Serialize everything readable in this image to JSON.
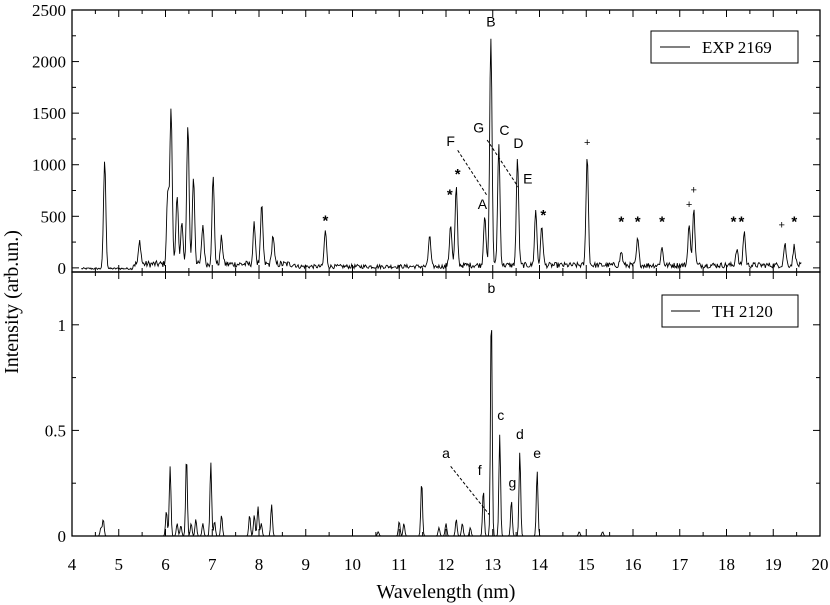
{
  "chart_data": {
    "type": "line",
    "xlabel": "Wavelength (nm)",
    "ylabel": "Intensity (arb.un.)",
    "xlim": [
      4,
      20
    ],
    "x_ticks": [
      4,
      5,
      6,
      7,
      8,
      9,
      10,
      11,
      12,
      13,
      14,
      15,
      16,
      17,
      18,
      19,
      20
    ],
    "panels": [
      {
        "id": "top",
        "ylim": [
          -40,
          2500
        ],
        "y_ticks": [
          0,
          500,
          1000,
          1500,
          2000,
          2500
        ],
        "series": [
          {
            "name": "EXP 2169",
            "baseline": 60,
            "peaks": [
              {
                "x": 4.7,
                "y": 1050
              },
              {
                "x": 5.45,
                "y": 220
              },
              {
                "x": 6.05,
                "y": 700
              },
              {
                "x": 6.12,
                "y": 1510
              },
              {
                "x": 6.25,
                "y": 650
              },
              {
                "x": 6.35,
                "y": 400
              },
              {
                "x": 6.48,
                "y": 1370
              },
              {
                "x": 6.6,
                "y": 850
              },
              {
                "x": 6.8,
                "y": 380
              },
              {
                "x": 7.02,
                "y": 840
              },
              {
                "x": 7.2,
                "y": 260
              },
              {
                "x": 7.9,
                "y": 390
              },
              {
                "x": 8.06,
                "y": 560
              },
              {
                "x": 8.3,
                "y": 280
              },
              {
                "x": 9.42,
                "y": 350
              },
              {
                "x": 11.65,
                "y": 300
              },
              {
                "x": 12.1,
                "y": 400
              },
              {
                "x": 12.22,
                "y": 750
              },
              {
                "x": 12.83,
                "y": 500
              },
              {
                "x": 12.96,
                "y": 2220
              },
              {
                "x": 13.13,
                "y": 1170
              },
              {
                "x": 13.53,
                "y": 1040
              },
              {
                "x": 13.92,
                "y": 530
              },
              {
                "x": 14.05,
                "y": 380
              },
              {
                "x": 15.02,
                "y": 1070
              },
              {
                "x": 15.75,
                "y": 130
              },
              {
                "x": 16.1,
                "y": 250
              },
              {
                "x": 16.62,
                "y": 170
              },
              {
                "x": 17.2,
                "y": 390
              },
              {
                "x": 17.3,
                "y": 540
              },
              {
                "x": 18.22,
                "y": 160
              },
              {
                "x": 18.38,
                "y": 330
              },
              {
                "x": 19.25,
                "y": 210
              },
              {
                "x": 19.45,
                "y": 190
              }
            ]
          }
        ],
        "peak_labels": [
          {
            "text": "B",
            "x": 12.96,
            "y": 2340
          },
          {
            "text": "C",
            "x": 13.25,
            "y": 1290
          },
          {
            "text": "D",
            "x": 13.55,
            "y": 1160
          },
          {
            "text": "E",
            "x": 13.75,
            "y": 820
          },
          {
            "text": "A",
            "x": 12.78,
            "y": 570
          },
          {
            "text": "F",
            "x": 12.1,
            "y": 1180
          },
          {
            "text": "G",
            "x": 12.7,
            "y": 1310
          }
        ],
        "star_marks": [
          {
            "x": 9.42,
            "y": 490
          },
          {
            "x": 12.08,
            "y": 740
          },
          {
            "x": 12.25,
            "y": 940
          },
          {
            "x": 14.08,
            "y": 540
          },
          {
            "x": 15.75,
            "y": 480
          },
          {
            "x": 16.1,
            "y": 480
          },
          {
            "x": 16.62,
            "y": 480
          },
          {
            "x": 18.15,
            "y": 480
          },
          {
            "x": 18.32,
            "y": 480
          },
          {
            "x": 19.45,
            "y": 480
          }
        ],
        "plus_marks": [
          {
            "x": 15.02,
            "y": 1220
          },
          {
            "x": 17.2,
            "y": 620
          },
          {
            "x": 17.3,
            "y": 760
          },
          {
            "x": 19.18,
            "y": 420
          }
        ],
        "leaders": [
          {
            "from": [
              12.25,
              1140
            ],
            "to": [
              12.88,
              700
            ]
          },
          {
            "from": [
              12.88,
              1240
            ],
            "to": [
              13.55,
              780
            ]
          }
        ]
      },
      {
        "id": "bottom",
        "ylim": [
          0,
          1.25
        ],
        "y_ticks": [
          0,
          0.5,
          1
        ],
        "series": [
          {
            "name": "TH 2120",
            "baseline": 0,
            "peaks": [
              {
                "x": 4.62,
                "y": 0.04
              },
              {
                "x": 4.67,
                "y": 0.08
              },
              {
                "x": 6.02,
                "y": 0.12
              },
              {
                "x": 6.1,
                "y": 0.33
              },
              {
                "x": 6.25,
                "y": 0.06
              },
              {
                "x": 6.33,
                "y": 0.05
              },
              {
                "x": 6.45,
                "y": 0.38
              },
              {
                "x": 6.55,
                "y": 0.06
              },
              {
                "x": 6.65,
                "y": 0.08
              },
              {
                "x": 6.8,
                "y": 0.06
              },
              {
                "x": 6.97,
                "y": 0.35
              },
              {
                "x": 7.05,
                "y": 0.07
              },
              {
                "x": 7.2,
                "y": 0.1
              },
              {
                "x": 7.8,
                "y": 0.1
              },
              {
                "x": 7.9,
                "y": 0.1
              },
              {
                "x": 7.98,
                "y": 0.14
              },
              {
                "x": 8.05,
                "y": 0.06
              },
              {
                "x": 8.27,
                "y": 0.15
              },
              {
                "x": 10.55,
                "y": 0.02
              },
              {
                "x": 11.0,
                "y": 0.07
              },
              {
                "x": 11.1,
                "y": 0.06
              },
              {
                "x": 11.48,
                "y": 0.26
              },
              {
                "x": 11.85,
                "y": 0.04
              },
              {
                "x": 12.0,
                "y": 0.06
              },
              {
                "x": 12.22,
                "y": 0.08
              },
              {
                "x": 12.35,
                "y": 0.06
              },
              {
                "x": 12.52,
                "y": 0.04
              },
              {
                "x": 12.8,
                "y": 0.22
              },
              {
                "x": 12.97,
                "y": 1.08
              },
              {
                "x": 13.15,
                "y": 0.48
              },
              {
                "x": 13.4,
                "y": 0.17
              },
              {
                "x": 13.58,
                "y": 0.4
              },
              {
                "x": 13.95,
                "y": 0.31
              },
              {
                "x": 14.85,
                "y": 0.02
              },
              {
                "x": 15.35,
                "y": 0.02
              }
            ]
          }
        ],
        "peak_labels": [
          {
            "text": "b",
            "x": 12.97,
            "y": 1.15
          },
          {
            "text": "c",
            "x": 13.17,
            "y": 0.55
          },
          {
            "text": "d",
            "x": 13.58,
            "y": 0.46
          },
          {
            "text": "e",
            "x": 13.95,
            "y": 0.37
          },
          {
            "text": "f",
            "x": 12.72,
            "y": 0.29
          },
          {
            "text": "g",
            "x": 13.42,
            "y": 0.23
          },
          {
            "text": "a",
            "x": 12.0,
            "y": 0.37
          }
        ],
        "leaders": [
          {
            "from": [
              12.1,
              0.33
            ],
            "to": [
              12.93,
              0.1
            ]
          }
        ]
      }
    ]
  }
}
